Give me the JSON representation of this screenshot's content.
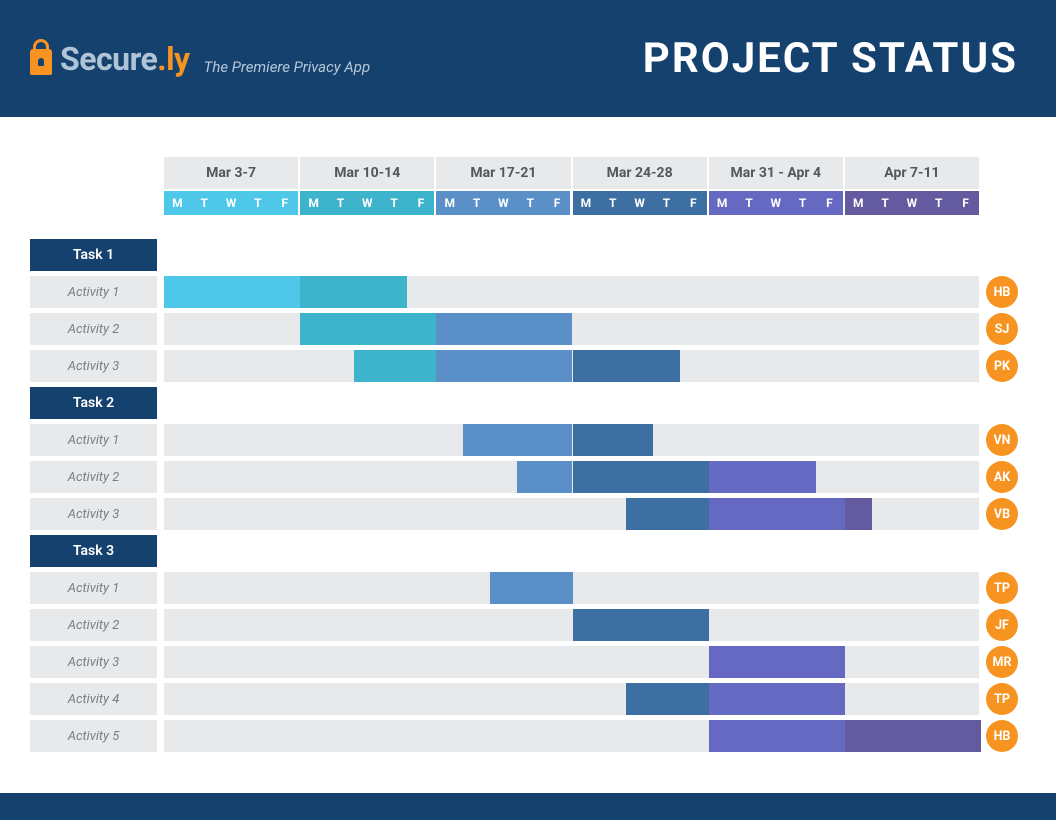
{
  "header": {
    "brand_a": "Secure",
    "brand_dot": ".",
    "brand_b": "ly",
    "tagline": "The Premiere Privacy App",
    "title": "PROJECT STATUS"
  },
  "colors": {
    "header_bg": "#15416f",
    "accent": "#f79421",
    "row_bg": "#e8e9ea",
    "avatar_bg": "#f79421"
  },
  "gantt": {
    "total_days": 30,
    "weeks": [
      {
        "label": "Mar 3-7",
        "day_bg": "#4fc7e8",
        "days": [
          "M",
          "T",
          "W",
          "T",
          "F"
        ]
      },
      {
        "label": "Mar 10-14",
        "day_bg": "#3eb3cc",
        "days": [
          "M",
          "T",
          "W",
          "T",
          "F"
        ]
      },
      {
        "label": "Mar 17-21",
        "day_bg": "#5a8fc7",
        "days": [
          "M",
          "T",
          "W",
          "T",
          "F"
        ]
      },
      {
        "label": "Mar 24-28",
        "day_bg": "#3d6fa3",
        "days": [
          "M",
          "T",
          "W",
          "T",
          "F"
        ]
      },
      {
        "label": "Mar 31 - Apr 4",
        "day_bg": "#6569c2",
        "days": [
          "M",
          "T",
          "W",
          "T",
          "F"
        ]
      },
      {
        "label": "Apr 7-11",
        "day_bg": "#635aa0",
        "days": [
          "M",
          "T",
          "W",
          "T",
          "F"
        ]
      }
    ],
    "groups": [
      {
        "name": "Task 1",
        "rows": [
          {
            "label": "Activity 1",
            "avatar": "HB",
            "segments": [
              {
                "start": 0,
                "span": 5,
                "color": "#4fc7e8"
              },
              {
                "start": 5,
                "span": 4,
                "color": "#3eb3cc"
              }
            ]
          },
          {
            "label": "Activity 2",
            "avatar": "SJ",
            "segments": [
              {
                "start": 5,
                "span": 5,
                "color": "#3eb3cc"
              },
              {
                "start": 10,
                "span": 5,
                "color": "#5a8fc7"
              }
            ]
          },
          {
            "label": "Activity 3",
            "avatar": "PK",
            "segments": [
              {
                "start": 7,
                "span": 3,
                "color": "#3eb3cc"
              },
              {
                "start": 10,
                "span": 5,
                "color": "#5a8fc7"
              },
              {
                "start": 15,
                "span": 4,
                "color": "#3d6fa3"
              }
            ]
          }
        ]
      },
      {
        "name": "Task 2",
        "rows": [
          {
            "label": "Activity 1",
            "avatar": "VN",
            "segments": [
              {
                "start": 11,
                "span": 4,
                "color": "#5a8fc7"
              },
              {
                "start": 15,
                "span": 3,
                "color": "#3d6fa3"
              }
            ]
          },
          {
            "label": "Activity 2",
            "avatar": "AK",
            "segments": [
              {
                "start": 13,
                "span": 2,
                "color": "#5a8fc7"
              },
              {
                "start": 15,
                "span": 5,
                "color": "#3d6fa3"
              },
              {
                "start": 20,
                "span": 4,
                "color": "#6569c2"
              }
            ]
          },
          {
            "label": "Activity 3",
            "avatar": "VB",
            "segments": [
              {
                "start": 17,
                "span": 3,
                "color": "#3d6fa3"
              },
              {
                "start": 20,
                "span": 5,
                "color": "#6569c2"
              },
              {
                "start": 25,
                "span": 1,
                "color": "#635aa0"
              }
            ]
          }
        ]
      },
      {
        "name": "Task 3",
        "rows": [
          {
            "label": "Activity 1",
            "avatar": "TP",
            "segments": [
              {
                "start": 12,
                "span": 3,
                "color": "#5a8fc7"
              }
            ]
          },
          {
            "label": "Activity 2",
            "avatar": "JF",
            "segments": [
              {
                "start": 15,
                "span": 5,
                "color": "#3d6fa3"
              }
            ]
          },
          {
            "label": "Activity 3",
            "avatar": "MR",
            "segments": [
              {
                "start": 20,
                "span": 5,
                "color": "#6569c2"
              }
            ]
          },
          {
            "label": "Activity 4",
            "avatar": "TP",
            "segments": [
              {
                "start": 17,
                "span": 3,
                "color": "#3d6fa3"
              },
              {
                "start": 20,
                "span": 5,
                "color": "#6569c2"
              }
            ]
          },
          {
            "label": "Activity 5",
            "avatar": "HB",
            "segments": [
              {
                "start": 20,
                "span": 5,
                "color": "#6569c2"
              },
              {
                "start": 25,
                "span": 5,
                "color": "#635aa0"
              }
            ]
          }
        ]
      }
    ]
  }
}
